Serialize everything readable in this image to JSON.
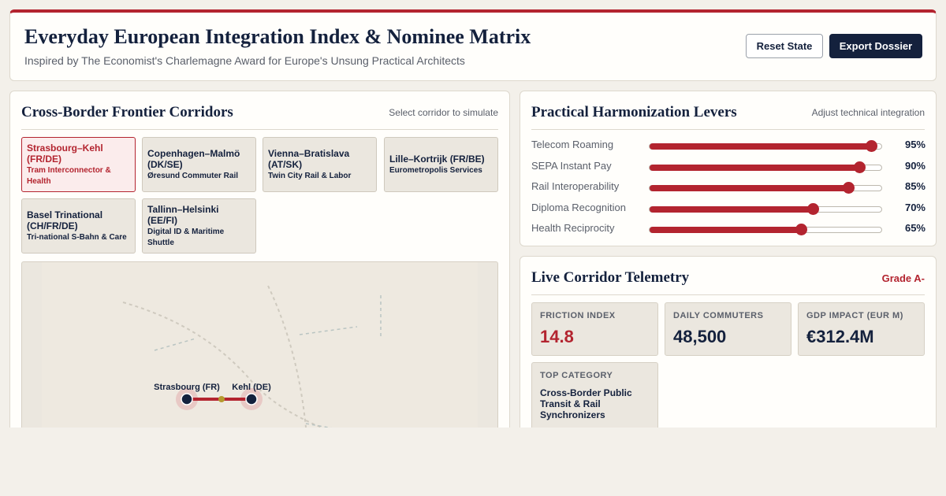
{
  "header": {
    "title": "Everyday European Integration Index & Nominee Matrix",
    "subtitle": "Inspired by The Economist's Charlemagne Award for Europe's Unsung Practical Architects",
    "reset_label": "Reset State",
    "export_label": "Export Dossier"
  },
  "corridors": {
    "title": "Cross-Border Frontier Corridors",
    "hint": "Select corridor to simulate",
    "items": [
      {
        "name": "Strasbourg–Kehl (FR/DE)",
        "service": "Tram Interconnector & Health",
        "active": true
      },
      {
        "name": "Copenhagen–Malmö (DK/SE)",
        "service": "Øresund Commuter Rail",
        "active": false
      },
      {
        "name": "Vienna–Bratislava (AT/SK)",
        "service": "Twin City Rail & Labor",
        "active": false
      },
      {
        "name": "Lille–Kortrijk (FR/BE)",
        "service": "Eurometropolis Services",
        "active": false
      },
      {
        "name": "Basel Trinational (CH/FR/DE)",
        "service": "Tri-national S-Bahn & Care",
        "active": false
      },
      {
        "name": "Tallinn–Helsinki (EE/FI)",
        "service": "Digital ID & Maritime Shuttle",
        "active": false
      }
    ],
    "map": {
      "city_a": "Strasbourg (FR)",
      "city_b": "Kehl (DE)"
    }
  },
  "levers": {
    "title": "Practical Harmonization Levers",
    "hint": "Adjust technical integration",
    "items": [
      {
        "label": "Telecom Roaming",
        "value": 95,
        "value_text": "95%"
      },
      {
        "label": "SEPA Instant Pay",
        "value": 90,
        "value_text": "90%"
      },
      {
        "label": "Rail Interoperability",
        "value": 85,
        "value_text": "85%"
      },
      {
        "label": "Diploma Recognition",
        "value": 70,
        "value_text": "70%"
      },
      {
        "label": "Health Reciprocity",
        "value": 65,
        "value_text": "65%"
      }
    ]
  },
  "telemetry": {
    "title": "Live Corridor Telemetry",
    "grade": "Grade A-",
    "friction_label": "FRICTION INDEX",
    "friction_value": "14.8",
    "commuters_label": "DAILY COMMUTERS",
    "commuters_value": "48,500",
    "gdp_label": "GDP IMPACT (EUR M)",
    "gdp_value": "€312.4M",
    "category_label": "TOP CATEGORY",
    "category_value": "Cross-Border Public Transit & Rail Synchronizers"
  },
  "colors": {
    "accent": "#b3242f",
    "navy": "#14213d",
    "page_bg": "#f3f0ea"
  }
}
